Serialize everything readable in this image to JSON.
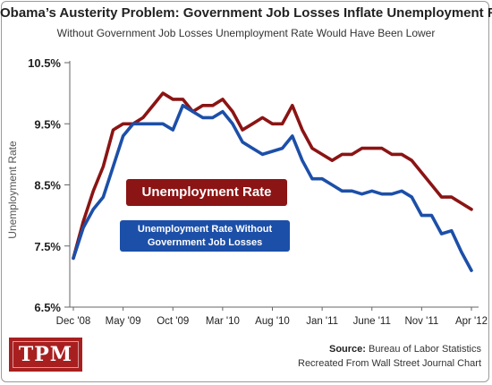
{
  "chart_data": {
    "type": "line",
    "title": "Obama’s Austerity Problem: Government Job Losses Inflate Unemployment Rate",
    "subtitle": "Without Government Job Losses Unemployment Rate Would Have Been Lower",
    "ylabel": "Unemployment Rate",
    "ylim": [
      6.5,
      10.5
    ],
    "y_ticks": [
      {
        "value": 10.5,
        "label": "10.5%"
      },
      {
        "value": 9.5,
        "label": "9.5%"
      },
      {
        "value": 8.5,
        "label": "8.5%"
      },
      {
        "value": 7.5,
        "label": "7.5%"
      },
      {
        "value": 6.5,
        "label": "6.5%"
      }
    ],
    "x_ticks": [
      {
        "index": 0,
        "label": "Dec '08"
      },
      {
        "index": 5,
        "label": "May '09"
      },
      {
        "index": 10,
        "label": "Oct '09"
      },
      {
        "index": 15,
        "label": "Mar '10"
      },
      {
        "index": 20,
        "label": "Aug '10"
      },
      {
        "index": 25,
        "label": "Jan '11"
      },
      {
        "index": 30,
        "label": "June '11"
      },
      {
        "index": 35,
        "label": "Nov '11"
      },
      {
        "index": 40,
        "label": "Apr '12"
      }
    ],
    "grid": false,
    "series": [
      {
        "name": "Unemployment Rate",
        "color": "#8b1414",
        "values": [
          7.3,
          7.9,
          8.4,
          8.8,
          9.4,
          9.5,
          9.5,
          9.6,
          9.8,
          10.0,
          9.9,
          9.9,
          9.7,
          9.8,
          9.8,
          9.9,
          9.7,
          9.4,
          9.5,
          9.6,
          9.5,
          9.5,
          9.8,
          9.4,
          9.1,
          9.0,
          8.9,
          9.0,
          9.0,
          9.1,
          9.1,
          9.1,
          9.0,
          9.0,
          8.9,
          8.7,
          8.5,
          8.3,
          8.3,
          8.2,
          8.1
        ]
      },
      {
        "name": "Unemployment Rate Without Government Job Losses",
        "color": "#1c4fa8",
        "values": [
          7.3,
          7.8,
          8.1,
          8.3,
          8.8,
          9.3,
          9.5,
          9.5,
          9.5,
          9.5,
          9.4,
          9.8,
          9.7,
          9.6,
          9.6,
          9.7,
          9.5,
          9.2,
          9.1,
          9.0,
          9.05,
          9.1,
          9.3,
          8.9,
          8.6,
          8.6,
          8.5,
          8.4,
          8.4,
          8.35,
          8.4,
          8.35,
          8.35,
          8.4,
          8.3,
          8.0,
          8.0,
          7.7,
          7.75,
          7.4,
          7.1
        ]
      }
    ]
  },
  "labels": {
    "red_box": "Unemployment Rate",
    "blue_box_line1": "Unemployment Rate Without",
    "blue_box_line2": "Government Job Losses"
  },
  "logo_text": "TPM",
  "source": {
    "label": "Source:",
    "text": "Bureau of Labor Statistics",
    "line2": "Recreated From Wall Street Journal Chart"
  }
}
